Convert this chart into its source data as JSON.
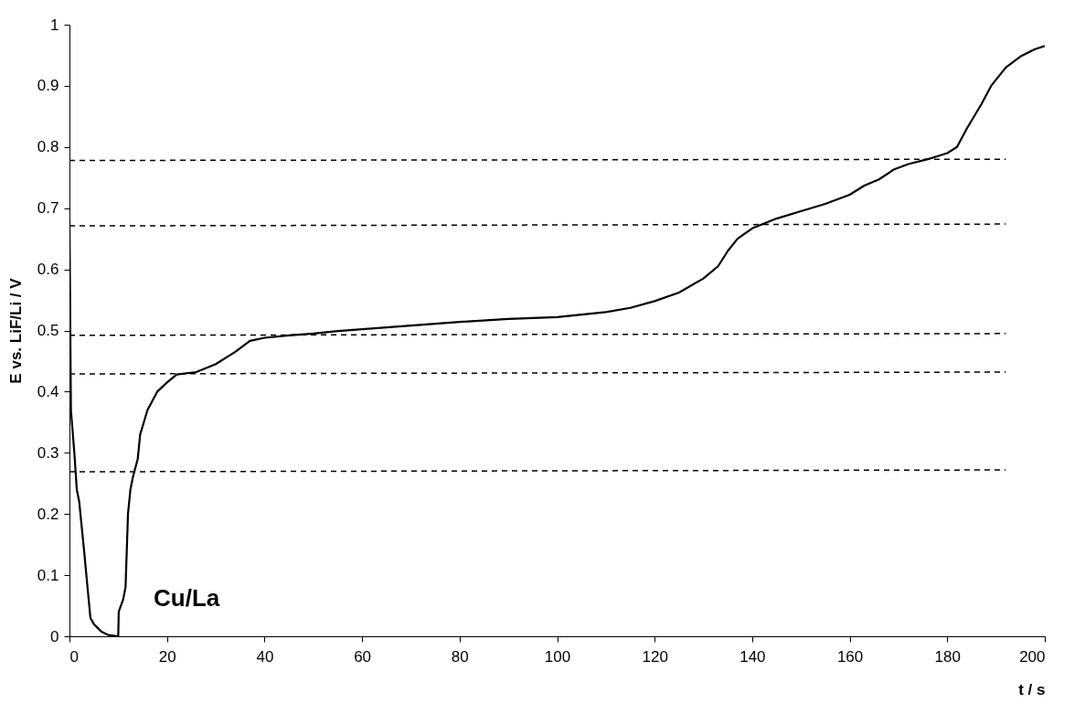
{
  "chart_data": {
    "type": "line",
    "xlabel": "t / s",
    "ylabel": "E vs. LiF/Li / V",
    "xlim": [
      0,
      200
    ],
    "xticks": [
      0,
      20,
      40,
      60,
      80,
      100,
      120,
      140,
      160,
      180,
      200
    ],
    "ylim": [
      0,
      1
    ],
    "yticks": [
      0,
      0.1,
      0.2,
      0.3,
      0.4,
      0.5,
      0.6,
      0.7,
      0.8,
      0.9,
      1
    ],
    "grid": false,
    "marker": "none",
    "annotations": [
      "Cu/La"
    ],
    "series": [
      {
        "color": "#000000",
        "line_style": "solid",
        "x": [
          0,
          0.3,
          1,
          1.5,
          2,
          3,
          3.7,
          4.3,
          5,
          6.5,
          8,
          10,
          10.1,
          11,
          11.5,
          12,
          12.5,
          13,
          14,
          14.5,
          16,
          18,
          20,
          22,
          26,
          30,
          34,
          37,
          40,
          45,
          50,
          55,
          60,
          70,
          80,
          90,
          100,
          110,
          115,
          120,
          125,
          130,
          133,
          135,
          137,
          140,
          145,
          150,
          155,
          160,
          163,
          166,
          169,
          172,
          176,
          180,
          182,
          184,
          187,
          189,
          192,
          195,
          198,
          200
        ],
        "values": [
          0.68,
          0.37,
          0.3,
          0.24,
          0.22,
          0.14,
          0.08,
          0.03,
          0.02,
          0.008,
          0.002,
          0,
          0.04,
          0.06,
          0.08,
          0.2,
          0.24,
          0.26,
          0.29,
          0.33,
          0.37,
          0.4,
          0.415,
          0.428,
          0.432,
          0.445,
          0.465,
          0.483,
          0.488,
          0.492,
          0.495,
          0.499,
          0.502,
          0.508,
          0.514,
          0.519,
          0.522,
          0.53,
          0.537,
          0.548,
          0.562,
          0.585,
          0.605,
          0.63,
          0.65,
          0.667,
          0.683,
          0.695,
          0.707,
          0.722,
          0.737,
          0.747,
          0.763,
          0.772,
          0.78,
          0.79,
          0.8,
          0.83,
          0.87,
          0.9,
          0.93,
          0.948,
          0.96,
          0.965
        ]
      },
      {
        "color": "#000000",
        "line_style": "dashed",
        "x": [
          0,
          192
        ],
        "values": [
          0.269,
          0.272
        ]
      },
      {
        "color": "#000000",
        "line_style": "dashed",
        "x": [
          0,
          192
        ],
        "values": [
          0.429,
          0.432
        ]
      },
      {
        "color": "#000000",
        "line_style": "dashed",
        "x": [
          0,
          192
        ],
        "values": [
          0.492,
          0.495
        ]
      },
      {
        "color": "#000000",
        "line_style": "dashed",
        "x": [
          0,
          192
        ],
        "values": [
          0.671,
          0.674
        ]
      },
      {
        "color": "#000000",
        "line_style": "dashed",
        "x": [
          0,
          192
        ],
        "values": [
          0.778,
          0.78
        ]
      }
    ]
  }
}
